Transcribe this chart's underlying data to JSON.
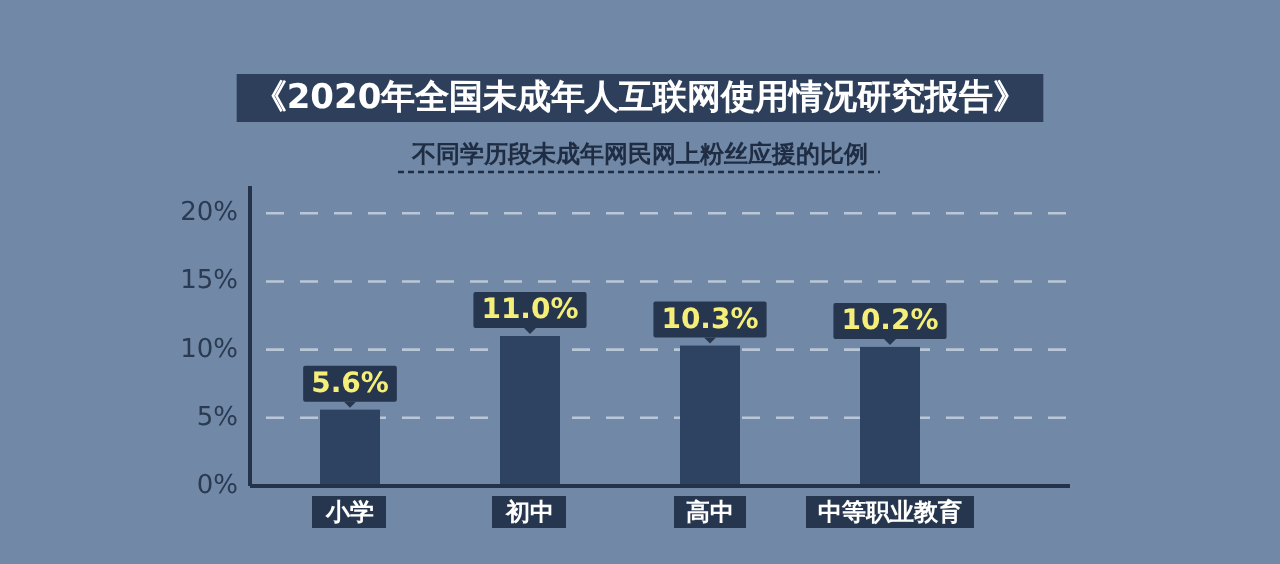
{
  "chart_data": {
    "type": "bar",
    "title": "《2020年全国未成年人互联网使用情况研究报告》",
    "subtitle": "不同学历段未成年网民网上粉丝应援的比例",
    "categories": [
      "小学",
      "初中",
      "高中",
      "中等职业教育"
    ],
    "series": [
      {
        "color": "#2e4262",
        "values": [
          5.6,
          11.0,
          10.3,
          10.2
        ],
        "value_labels": [
          "5.6%",
          "11.0%",
          "10.3%",
          "10.2%"
        ]
      }
    ],
    "ylim": [
      0,
      22
    ],
    "yticks": [
      {
        "value": 0,
        "label": "0%"
      },
      {
        "value": 5,
        "label": "5%"
      },
      {
        "value": 10,
        "label": "10%"
      },
      {
        "value": 15,
        "label": "15%"
      },
      {
        "value": 20,
        "label": "20%"
      }
    ],
    "grid": "y"
  }
}
